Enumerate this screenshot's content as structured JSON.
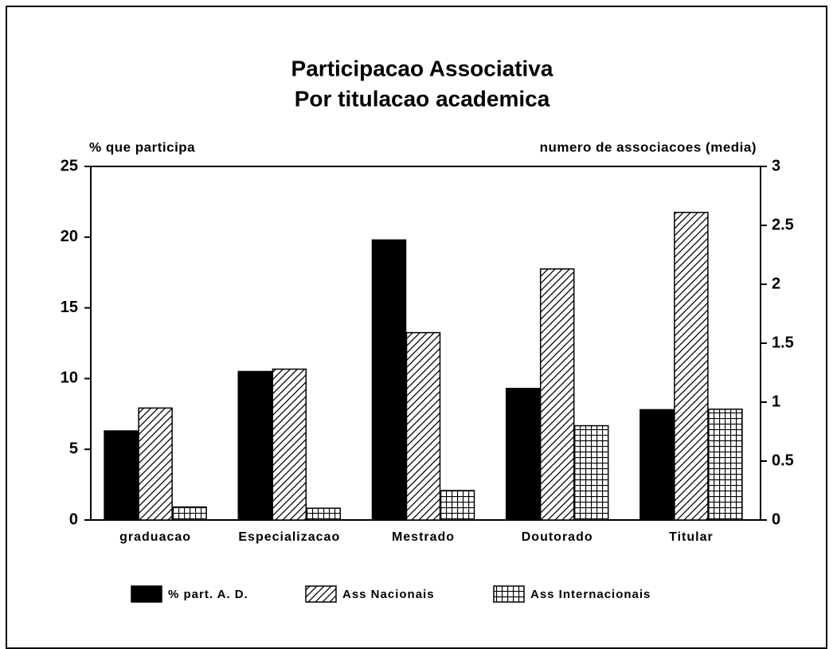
{
  "chart_data": {
    "type": "bar",
    "title": "Participacao Associativa",
    "subtitle": "Por titulacao academica",
    "y_label": "% que participa",
    "y2_label": "numero de associacoes (media)",
    "categories": [
      "graduacao",
      "Especializacao",
      "Mestrado",
      "Doutorado",
      "Titular"
    ],
    "series": [
      {
        "name": "% part. A. D.",
        "color": "#000000",
        "pattern": "solid",
        "values": [
          6.3,
          10.5,
          19.8,
          9.3,
          7.8
        ]
      },
      {
        "name": "Ass Nacionais",
        "color": "#000000",
        "pattern": "hatch",
        "axis": "y2",
        "values": [
          0.95,
          1.28,
          1.59,
          2.13,
          2.61
        ]
      },
      {
        "name": "Ass Internacionais",
        "color": "#000000",
        "pattern": "grid",
        "axis": "y2",
        "values": [
          0.11,
          0.1,
          0.25,
          0.8,
          0.94
        ]
      }
    ],
    "ylim": [
      0,
      25
    ],
    "yticks": [
      0,
      5,
      10,
      15,
      20,
      25
    ],
    "y2lim": [
      0,
      3
    ],
    "y2ticks": [
      0,
      0.5,
      1,
      1.5,
      2,
      2.5,
      3
    ],
    "legend": "bottom"
  }
}
